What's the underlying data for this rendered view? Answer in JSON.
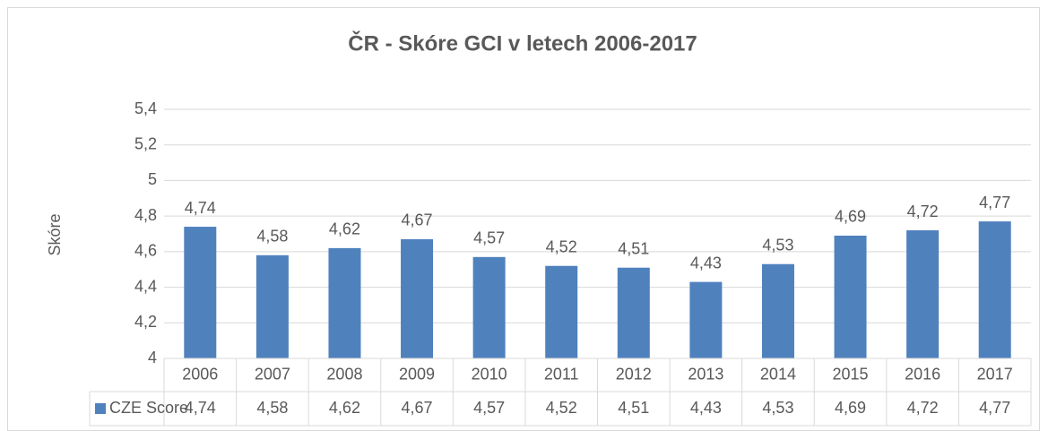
{
  "chart_data": {
    "type": "bar",
    "title": "ČR - Skóre GCI v letech 2006-2017",
    "y_label": "Skóre",
    "categories": [
      "2006",
      "2007",
      "2008",
      "2009",
      "2010",
      "2011",
      "2012",
      "2013",
      "2014",
      "2015",
      "2016",
      "2017"
    ],
    "series": [
      {
        "name": "CZE Score",
        "color": "#4f81bd",
        "values": [
          4.74,
          4.58,
          4.62,
          4.67,
          4.57,
          4.52,
          4.51,
          4.43,
          4.53,
          4.69,
          4.72,
          4.77
        ],
        "value_labels": [
          "4,74",
          "4,58",
          "4,62",
          "4,67",
          "4,57",
          "4,52",
          "4,51",
          "4,43",
          "4,53",
          "4,69",
          "4,72",
          "4,77"
        ]
      }
    ],
    "ylim": [
      4,
      5.4
    ],
    "yticks": [
      4,
      {
        "value": 4.2,
        "label": "4,2"
      },
      {
        "value": 4.4,
        "label": "4,4"
      },
      {
        "value": 4.6,
        "label": "4,6"
      },
      {
        "value": 4.8,
        "label": "4,8"
      },
      5,
      {
        "value": 5.2,
        "label": "5,2"
      },
      {
        "value": 5.4,
        "label": "5,4"
      }
    ],
    "grid": true,
    "data_table": true
  }
}
